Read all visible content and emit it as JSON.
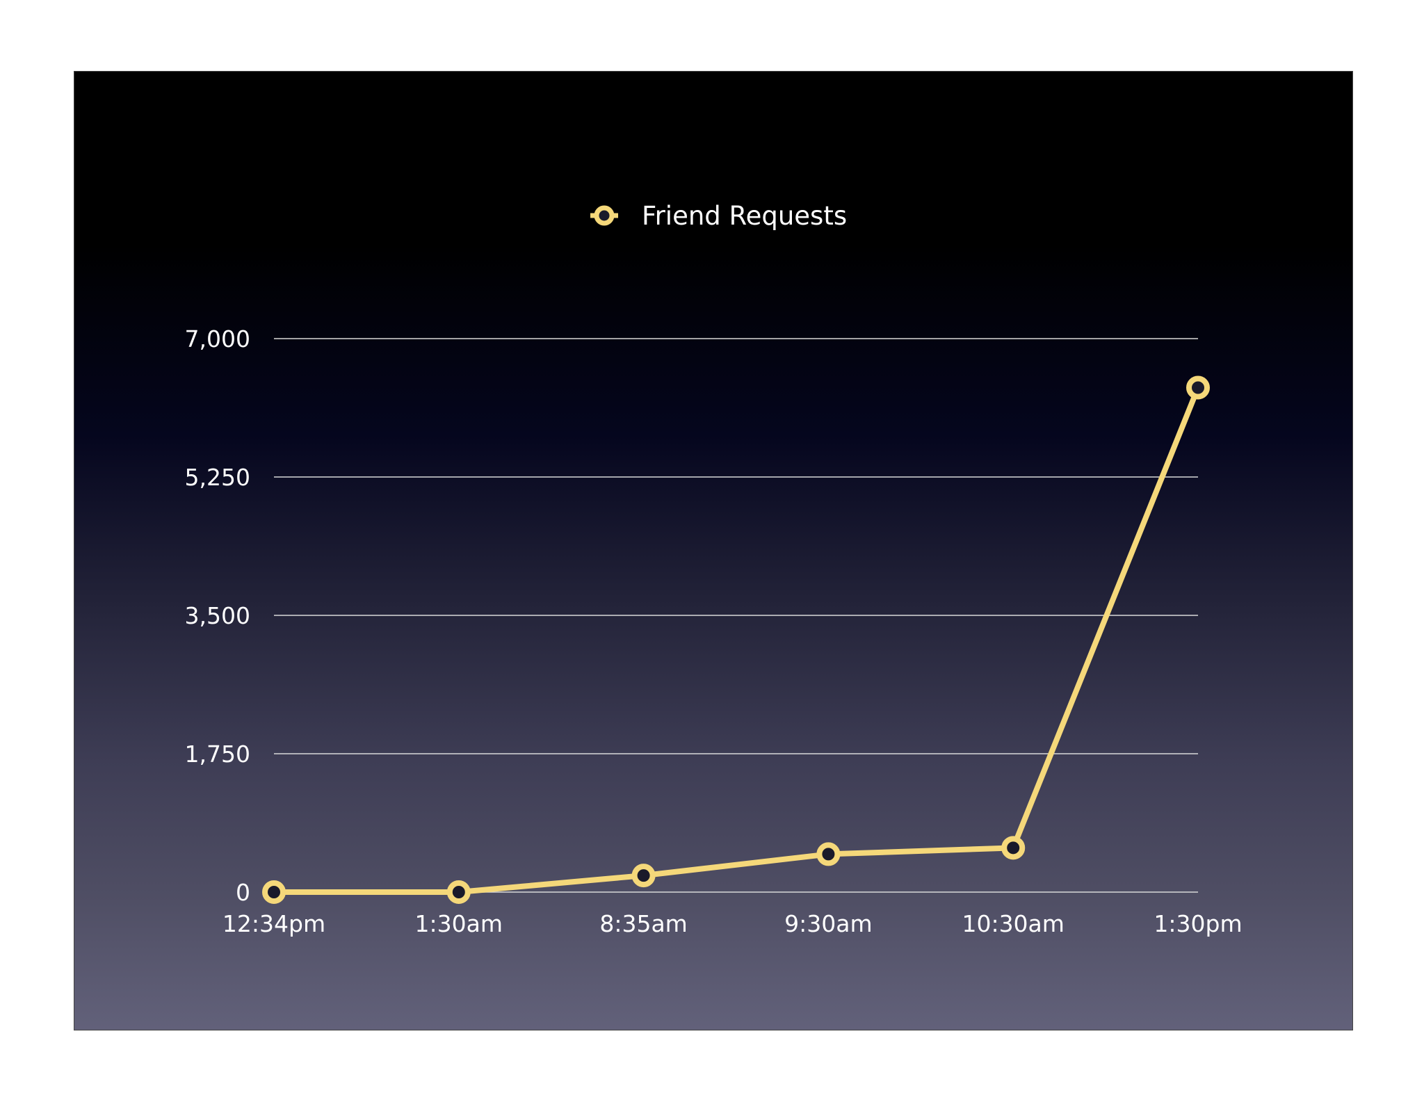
{
  "chart_data": {
    "type": "line",
    "categories": [
      "12:34pm",
      "1:30am",
      "8:35am",
      "9:30am",
      "10:30am",
      "1:30pm"
    ],
    "series": [
      {
        "name": "Friend Requests",
        "values": [
          0,
          0,
          210,
          480,
          560,
          6380
        ]
      }
    ],
    "ylim": [
      0,
      7000
    ],
    "y_ticks": [
      "0",
      "1,750",
      "3,500",
      "5,250",
      "7,000"
    ],
    "y_tick_values": [
      0,
      1750,
      3500,
      5250,
      7000
    ],
    "grid": true,
    "legend_position": "top-center",
    "colors": {
      "series": "#f5d87a",
      "marker_center": "#1a1a2a"
    }
  }
}
